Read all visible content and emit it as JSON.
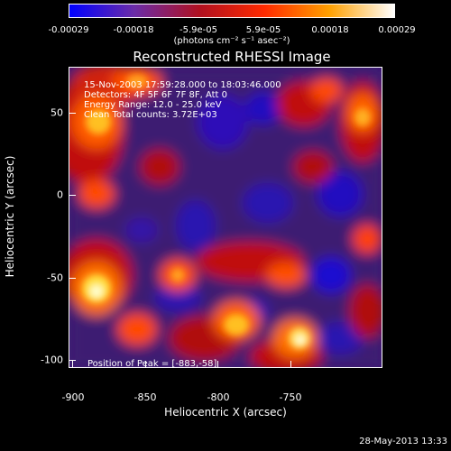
{
  "colorbar": {
    "ticks": [
      "-0.00029",
      "-0.00018",
      "-5.9e-05",
      "5.9e-05",
      "0.00018",
      "0.00029"
    ],
    "units": "(photons cm⁻² s⁻¹ asec⁻²)",
    "colors": [
      "#0000ff",
      "#6b2ca8",
      "#b01020",
      "#ff2a00",
      "#ffa000",
      "#ffffff"
    ]
  },
  "image": {
    "title": "Reconstructed RHESSI Image",
    "annotations": {
      "time": "15-Nov-2003 17:59:28.000 to 18:03:46.000",
      "detectors": "Detectors: 4F 5F 6F 7F 8F, Att 0",
      "energy": "Energy Range: 12.0 - 25.0 keV",
      "clean": "Clean    Total counts: 3.72E+03",
      "peak": "Position of Peak = [-883,-58]"
    }
  },
  "axes": {
    "xlabel": "Heliocentric X (arcsec)",
    "ylabel": "Heliocentric Y (arcsec)",
    "xticks": [
      "-900",
      "-850",
      "-800",
      "-750"
    ],
    "yticks": [
      "50",
      "0",
      "-50",
      "-100"
    ]
  },
  "footer": {
    "date": "28-May-2013 13:33"
  }
}
